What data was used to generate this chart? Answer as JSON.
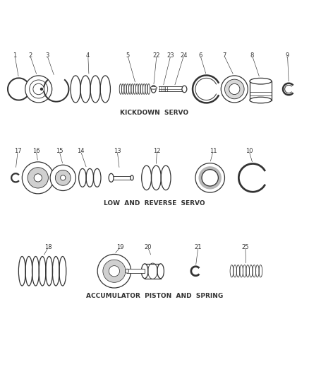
{
  "bg_color": "#ffffff",
  "line_color": "#333333",
  "section1_label": "KICKDOWN  SERVO",
  "section2_label": "LOW  AND  REVERSE  SERVO",
  "section3_label": "ACCUMULATOR  PISTON  AND  SPRING"
}
